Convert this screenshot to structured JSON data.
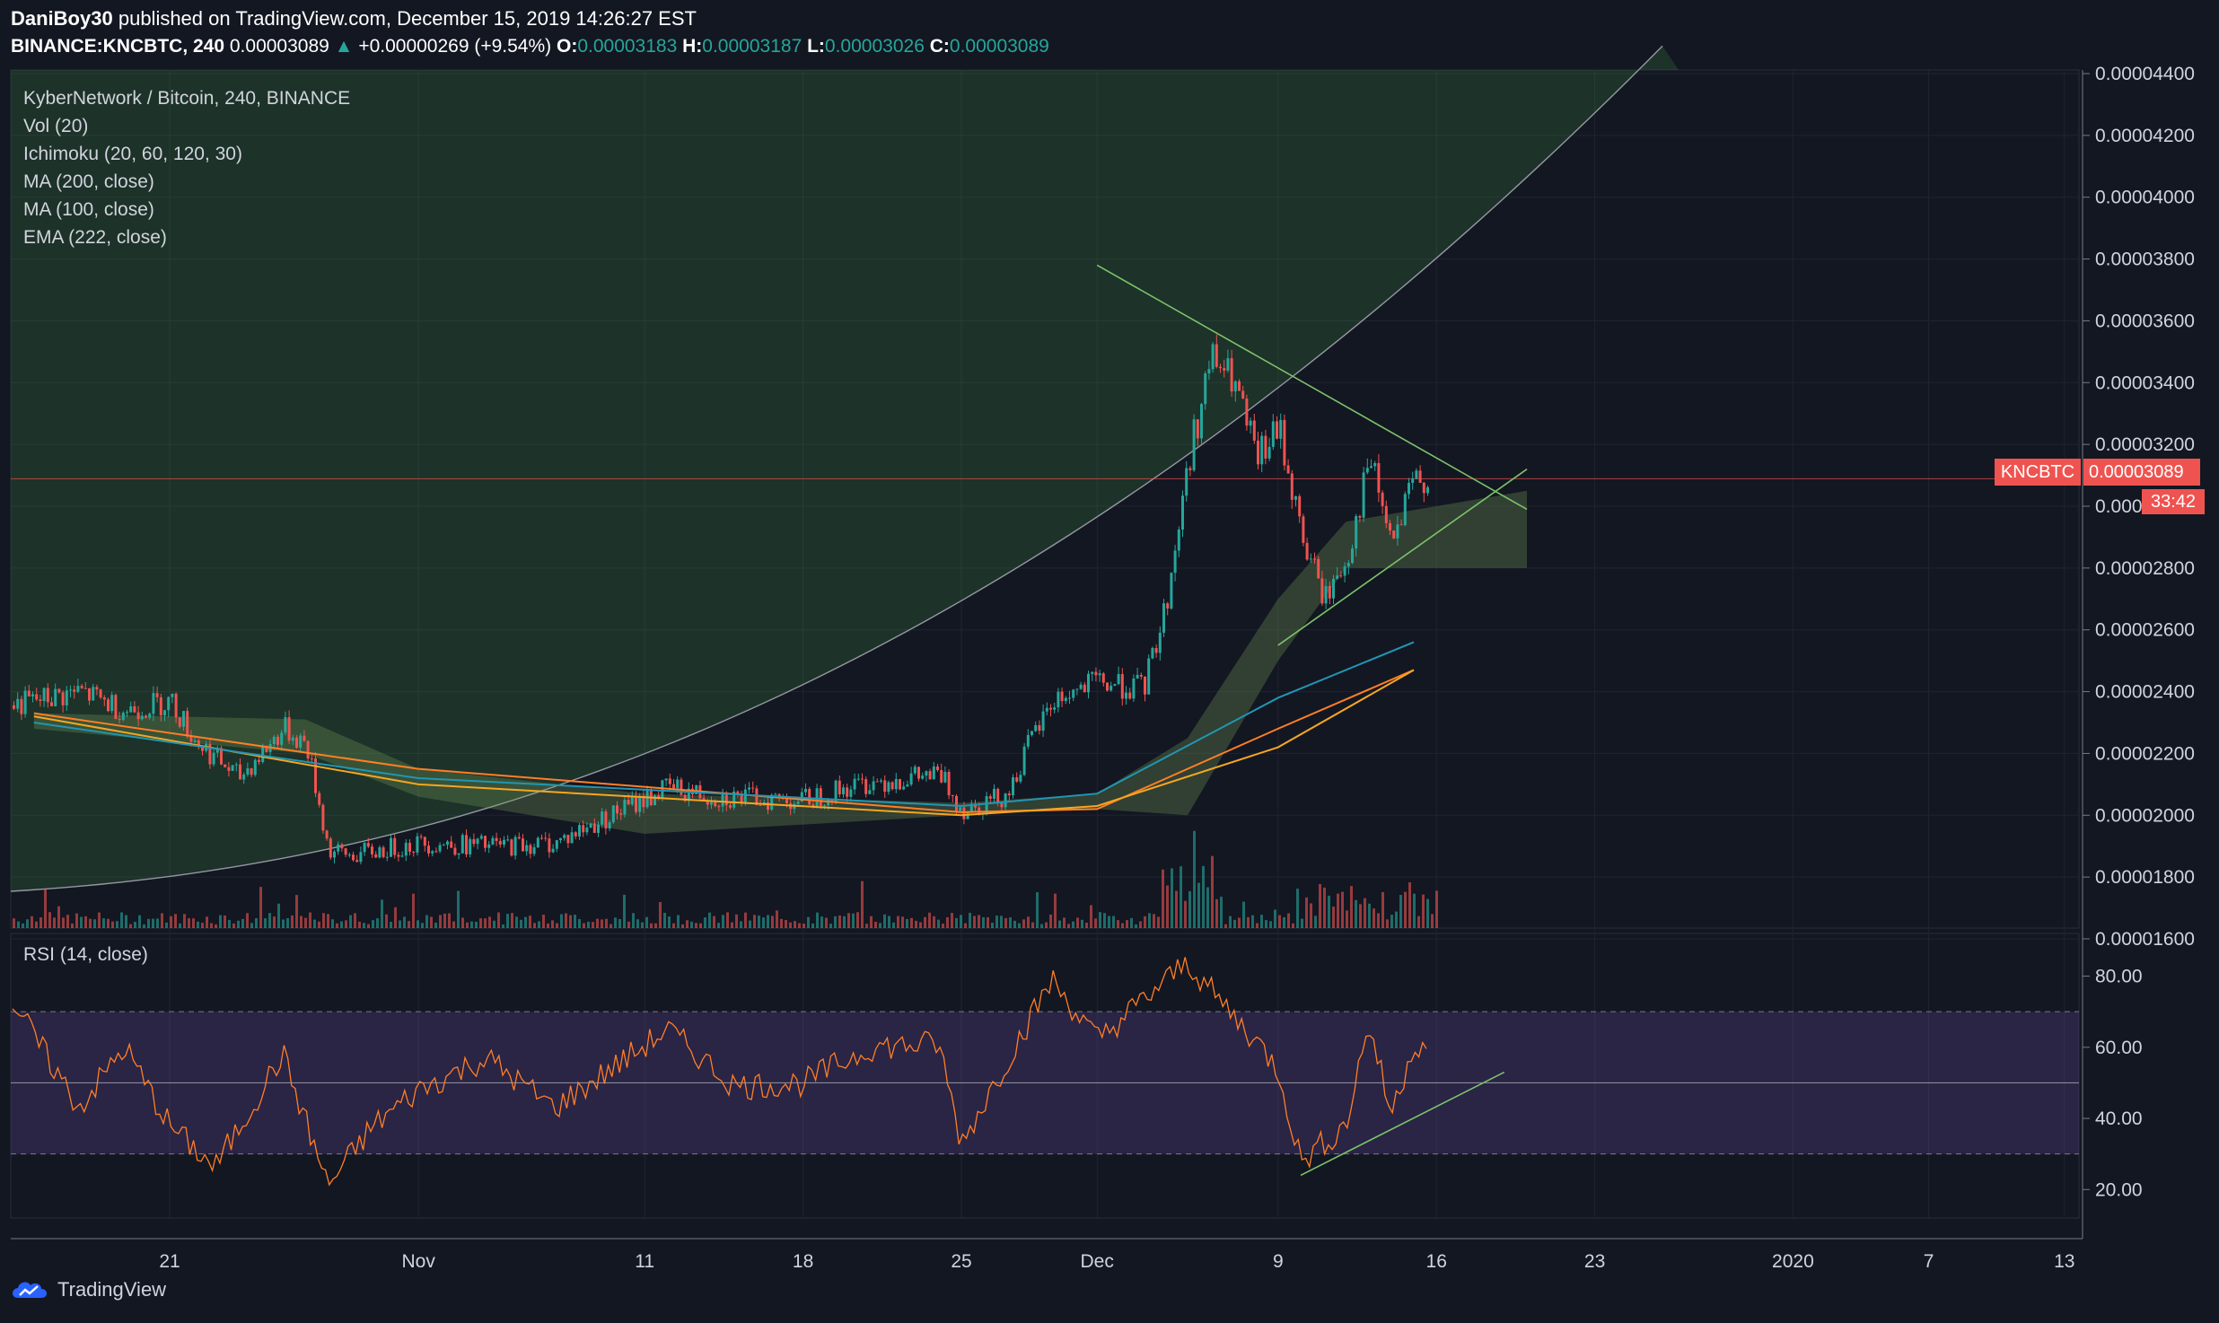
{
  "header": {
    "author": "DaniBoy30",
    "published_text": "published on TradingView.com, December 15, 2019 14:26:27 EST",
    "symbol": "BINANCE:KNCBTC, 240",
    "last": "0.00003089",
    "change": "+0.00000269 (+9.54%)",
    "o_label": "O:",
    "o": "0.00003183",
    "h_label": "H:",
    "h": "0.00003187",
    "l_label": "L:",
    "l": "0.00003026",
    "c_label": "C:",
    "c": "0.00003089"
  },
  "legend": {
    "title": "KyberNetwork / Bitcoin, 240, BINANCE",
    "vol": "Vol (20)",
    "ichimoku": "Ichimoku (20, 60, 120, 30)",
    "ma200": "MA (200, close)",
    "ma100": "MA (100, close)",
    "ema222": "EMA (222, close)"
  },
  "rsi_title": "RSI (14, close)",
  "price_tag": {
    "symbol": "KNCBTC",
    "value": "0.00003089",
    "timer": "33:42"
  },
  "footer": {
    "brand": "TradingView"
  },
  "colors": {
    "background": "#131722",
    "up": "#26a69a",
    "down": "#ef5350",
    "ma200": "#f5a623",
    "ma100": "#2196b3",
    "ema222": "#ff7f27",
    "kijun": "#a52727",
    "tenkan": "#2962ff",
    "rsi": "#ff7f27",
    "trendline": "#7cc36a"
  },
  "chart_data": [
    {
      "type": "candlestick",
      "symbol": "KNCBTC",
      "y_ticks": [
        "0.00004400",
        "0.00004200",
        "0.00004000",
        "0.00003800",
        "0.00003600",
        "0.00003400",
        "0.00003200",
        "0.00003000",
        "0.00002800",
        "0.00002600",
        "0.00002400",
        "0.00002200",
        "0.00002000",
        "0.00001800",
        "0.00001600"
      ],
      "x_ticks": [
        "21",
        "Nov",
        "11",
        "18",
        "25",
        "Dec",
        "9",
        "16",
        "23",
        "2020",
        "7",
        "13"
      ],
      "ylim": [
        1.6e-05,
        4.4e-05
      ],
      "price_path": [
        [
          "Oct 15",
          2.37e-05
        ],
        [
          "Oct 17",
          2.4e-05
        ],
        [
          "Oct 19",
          2.34e-05
        ],
        [
          "Oct 21",
          2.37e-05
        ],
        [
          "Oct 22",
          2.25e-05
        ],
        [
          "Oct 24",
          2.12e-05
        ],
        [
          "Oct 26",
          2.28e-05
        ],
        [
          "Oct 27",
          2.23e-05
        ],
        [
          "Oct 28",
          1.88e-05
        ],
        [
          "Oct 29",
          1.87e-05
        ],
        [
          "Nov 1",
          1.91e-05
        ],
        [
          "Nov 4",
          1.9e-05
        ],
        [
          "Nov 7",
          1.91e-05
        ],
        [
          "Nov 10",
          2.02e-05
        ],
        [
          "Nov 12",
          2.09e-05
        ],
        [
          "Nov 14",
          2.06e-05
        ],
        [
          "Nov 18",
          2.05e-05
        ],
        [
          "Nov 21",
          2.11e-05
        ],
        [
          "Nov 24",
          2.13e-05
        ],
        [
          "Nov 25",
          2.02e-05
        ],
        [
          "Nov 27",
          2.07e-05
        ],
        [
          "Nov 28",
          2.24e-05
        ],
        [
          "Nov 29",
          2.37e-05
        ],
        [
          "Dec 1",
          2.43e-05
        ],
        [
          "Dec 3",
          2.41e-05
        ],
        [
          "Dec 4",
          2.68e-05
        ],
        [
          "Dec 5",
          3.15e-05
        ],
        [
          "Dec 6",
          3.48e-05
        ],
        [
          "Dec 7",
          3.4e-05
        ],
        [
          "Dec 8",
          3.15e-05
        ],
        [
          "Dec 9",
          3.25e-05
        ],
        [
          "Dec 10",
          2.9e-05
        ],
        [
          "Dec 11",
          2.7e-05
        ],
        [
          "Dec 12",
          2.83e-05
        ],
        [
          "Dec 13",
          3.15e-05
        ],
        [
          "Dec 14",
          2.87e-05
        ],
        [
          "Dec 15",
          3.09e-05
        ]
      ],
      "ema222": [
        [
          "Oct 15",
          2.33e-05
        ],
        [
          "Nov 1",
          2.15e-05
        ],
        [
          "Nov 25",
          2.01e-05
        ],
        [
          "Dec 1",
          2.02e-05
        ],
        [
          "Dec 9",
          2.28e-05
        ],
        [
          "Dec 15",
          2.47e-05
        ]
      ],
      "ma100": [
        [
          "Oct 15",
          2.3e-05
        ],
        [
          "Nov 1",
          2.12e-05
        ],
        [
          "Nov 25",
          2.03e-05
        ],
        [
          "Dec 1",
          2.07e-05
        ],
        [
          "Dec 9",
          2.38e-05
        ],
        [
          "Dec 15",
          2.56e-05
        ]
      ],
      "ma200": [
        [
          "Oct 15",
          2.32e-05
        ],
        [
          "Nov 1",
          2.1e-05
        ],
        [
          "Nov 25",
          2e-05
        ],
        [
          "Dec 1",
          2.03e-05
        ],
        [
          "Dec 9",
          2.22e-05
        ],
        [
          "Dec 15",
          2.47e-05
        ]
      ],
      "trendlines": [
        {
          "name": "descending resistance",
          "from": [
            "Dec 1",
            3.78e-05
          ],
          "to": [
            "Dec 20",
            2.99e-05
          ]
        },
        {
          "name": "ascending support",
          "from": [
            "Dec 9",
            2.55e-05
          ],
          "to": [
            "Dec 20",
            3.12e-05
          ]
        }
      ]
    },
    {
      "type": "line",
      "name": "RSI (14, close)",
      "y_ticks": [
        "80.00",
        "60.00",
        "40.00",
        "20.00"
      ],
      "ylim": [
        12,
        92
      ],
      "bands": [
        30,
        50,
        70
      ],
      "values": [
        [
          "Oct 15",
          63
        ],
        [
          "Oct 17",
          43
        ],
        [
          "Oct 19",
          60
        ],
        [
          "Oct 21",
          38
        ],
        [
          "Oct 23",
          26
        ],
        [
          "Oct 26",
          58
        ],
        [
          "Oct 28",
          21
        ],
        [
          "Oct 30",
          38
        ],
        [
          "Nov 1",
          48
        ],
        [
          "Nov 4",
          57
        ],
        [
          "Nov 7",
          43
        ],
        [
          "Nov 10",
          56
        ],
        [
          "Nov 12",
          65
        ],
        [
          "Nov 15",
          49
        ],
        [
          "Nov 18",
          50
        ],
        [
          "Nov 21",
          60
        ],
        [
          "Nov 24",
          61
        ],
        [
          "Nov 25",
          33
        ],
        [
          "Nov 27",
          56
        ],
        [
          "Nov 29",
          79
        ],
        [
          "Dec 1",
          62
        ],
        [
          "Dec 3",
          73
        ],
        [
          "Dec 5",
          84
        ],
        [
          "Dec 6",
          76
        ],
        [
          "Dec 8",
          62
        ],
        [
          "Dec 9",
          54
        ],
        [
          "Dec 10",
          28
        ],
        [
          "Dec 12",
          38
        ],
        [
          "Dec 13",
          67
        ],
        [
          "Dec 14",
          41
        ],
        [
          "Dec 15",
          61
        ]
      ],
      "trendline": {
        "from": [
          "Dec 10",
          24
        ],
        "to": [
          "Dec 19",
          53
        ]
      }
    }
  ]
}
